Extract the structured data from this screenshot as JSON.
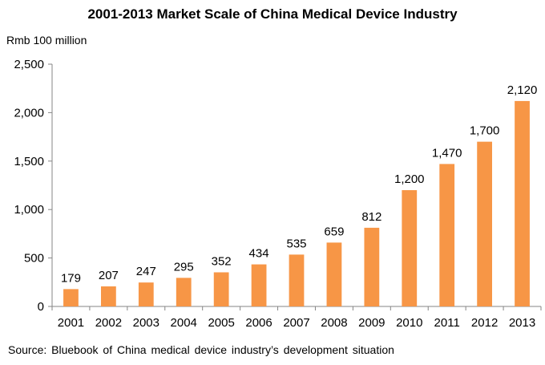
{
  "chart_data": {
    "type": "bar",
    "title": "2001-2013 Market Scale of China Medical Device Industry",
    "ylabel": "Rmb 100 million",
    "xlabel": "",
    "source": "Source:  Bluebook of China medical device industry’s  development  situation",
    "categories": [
      "2001",
      "2002",
      "2003",
      "2004",
      "2005",
      "2006",
      "2007",
      "2008",
      "2009",
      "2010",
      "2011",
      "2012",
      "2013"
    ],
    "values": [
      179,
      207,
      247,
      295,
      352,
      434,
      535,
      659,
      812,
      1200,
      1470,
      1700,
      2120
    ],
    "value_labels": [
      "179",
      "207",
      "247",
      "295",
      "352",
      "434",
      "535",
      "659",
      "812",
      "1,200",
      "1,470",
      "1,700",
      "2,120"
    ],
    "ylim": [
      0,
      2500
    ],
    "yticks": [
      0,
      500,
      1000,
      1500,
      2000,
      2500
    ],
    "ytick_labels": [
      "0",
      "500",
      "1,000",
      "1,500",
      "2,000",
      "2,500"
    ],
    "grid": false,
    "bar_color": "#F79646",
    "axis_color": "#868686"
  }
}
